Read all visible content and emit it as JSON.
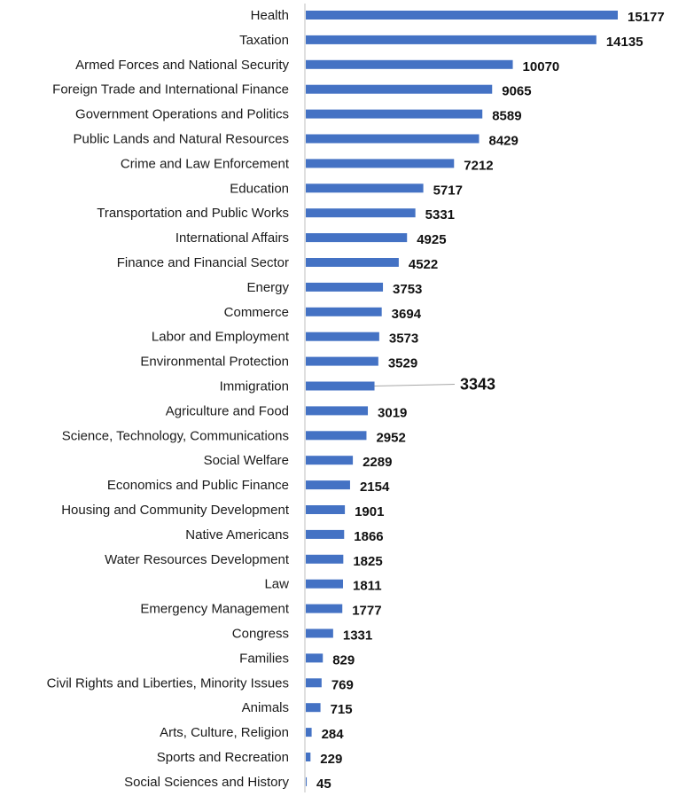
{
  "colors": {
    "bar": "#4472c4",
    "axis": "#bfbfbf",
    "leader": "#a6a6a6",
    "text": "#1a1a1a"
  },
  "chart_data": {
    "type": "bar",
    "orientation": "horizontal",
    "title": "",
    "xlabel": "",
    "ylabel": "",
    "grid": false,
    "legend": "none",
    "xlim": [
      0,
      15177
    ],
    "categories": [
      "Health",
      "Taxation",
      "Armed Forces and National Security",
      "Foreign Trade and International Finance",
      "Government Operations and Politics",
      "Public Lands and Natural Resources",
      "Crime and Law Enforcement",
      "Education",
      "Transportation and Public Works",
      "International Affairs",
      "Finance and Financial Sector",
      "Energy",
      "Commerce",
      "Labor and Employment",
      "Environmental Protection",
      "Immigration",
      "Agriculture and Food",
      "Science, Technology, Communications",
      "Social Welfare",
      "Economics and Public Finance",
      "Housing and Community Development",
      "Native Americans",
      "Water Resources Development",
      "Law",
      "Emergency Management",
      "Congress",
      "Families",
      "Civil Rights and Liberties, Minority Issues",
      "Animals",
      "Arts, Culture, Religion",
      "Sports and Recreation",
      "Social Sciences and History"
    ],
    "values": [
      15177,
      14135,
      10070,
      9065,
      8589,
      8429,
      7212,
      5717,
      5331,
      4925,
      4522,
      3753,
      3694,
      3573,
      3529,
      3343,
      3019,
      2952,
      2289,
      2154,
      1901,
      1866,
      1825,
      1811,
      1777,
      1331,
      829,
      769,
      715,
      284,
      229,
      45
    ],
    "highlighted_category": "Immigration"
  }
}
